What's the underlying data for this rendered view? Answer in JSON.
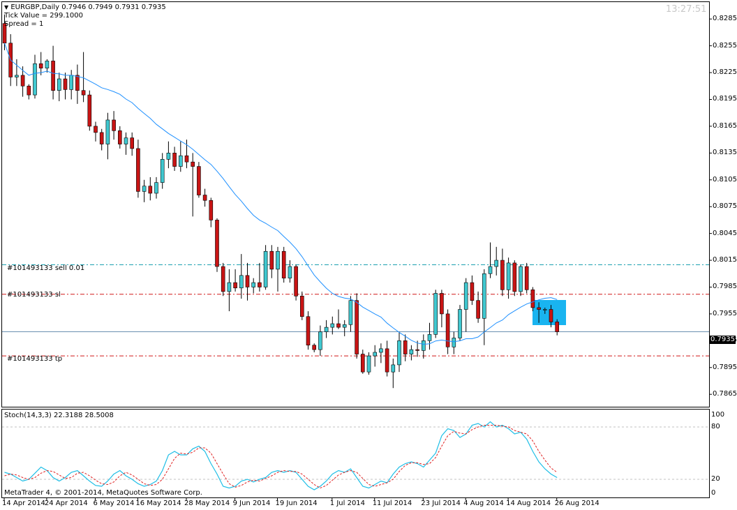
{
  "header": {
    "symbol_line": "EURGBP,Daily  0.7946 0.7949 0.7931 0.7935",
    "tick_value": "Tick Value = 299.1000",
    "spread": "Spread = 1",
    "clock": "13:27:51"
  },
  "orders": {
    "sell_label": "#101493133 sell 0.01",
    "sl_label": "#101493133 sl",
    "tp_label": "#101493133 tp",
    "sell_price": 0.801,
    "sl_price": 0.7977,
    "tp_price": 0.7908
  },
  "current_price": {
    "label": "0.7935",
    "value": 0.7935
  },
  "price_axis": [
    "0.8285",
    "0.8255",
    "0.8225",
    "0.8195",
    "0.8165",
    "0.8135",
    "0.8105",
    "0.8075",
    "0.8045",
    "0.8015",
    "0.7985",
    "0.7955",
    "0.7925",
    "0.7895",
    "0.7865"
  ],
  "date_axis": [
    "14 Apr 2014",
    "24 Apr 2014",
    "6 May 2014",
    "16 May 2014",
    "28 May 2014",
    "9 Jun 2014",
    "19 Jun 2014",
    "1 Jul 2014",
    "11 Jul 2014",
    "23 Jul 2014",
    "4 Aug 2014",
    "14 Aug 2014",
    "26 Aug 2014"
  ],
  "stoch": {
    "title": "Stoch(14,3,3) 22.3188 28.5008",
    "levels": [
      "100",
      "80",
      "20",
      "0"
    ]
  },
  "footer": "MetaTrader 4, © 2001-2014, MetaQuotes Software Corp.",
  "colors": {
    "bull": "#40c8d0",
    "bear": "#c81414",
    "ma": "#1e90ff",
    "stoch_main": "#1ebee6",
    "stoch_signal": "#e02020",
    "highlight": "#19b4f0"
  },
  "chart_data": {
    "type": "candlestick",
    "timeframe": "Daily",
    "symbol": "EURGBP",
    "ylim": [
      0.7855,
      0.83
    ],
    "candles": [
      {
        "o": 0.828,
        "h": 0.829,
        "l": 0.825,
        "c": 0.8258
      },
      {
        "o": 0.8258,
        "h": 0.8268,
        "l": 0.821,
        "c": 0.822
      },
      {
        "o": 0.822,
        "h": 0.824,
        "l": 0.821,
        "c": 0.8222
      },
      {
        "o": 0.8222,
        "h": 0.8232,
        "l": 0.8198,
        "c": 0.821
      },
      {
        "o": 0.821,
        "h": 0.8212,
        "l": 0.8195,
        "c": 0.82
      },
      {
        "o": 0.82,
        "h": 0.8245,
        "l": 0.8196,
        "c": 0.8235
      },
      {
        "o": 0.8235,
        "h": 0.8248,
        "l": 0.8222,
        "c": 0.823
      },
      {
        "o": 0.823,
        "h": 0.824,
        "l": 0.8225,
        "c": 0.8238
      },
      {
        "o": 0.8238,
        "h": 0.8255,
        "l": 0.8195,
        "c": 0.8205
      },
      {
        "o": 0.8205,
        "h": 0.8225,
        "l": 0.8193,
        "c": 0.8218
      },
      {
        "o": 0.8218,
        "h": 0.8225,
        "l": 0.8195,
        "c": 0.8206
      },
      {
        "o": 0.8206,
        "h": 0.8228,
        "l": 0.8195,
        "c": 0.8222
      },
      {
        "o": 0.8222,
        "h": 0.8234,
        "l": 0.819,
        "c": 0.8205
      },
      {
        "o": 0.8205,
        "h": 0.8248,
        "l": 0.8192,
        "c": 0.82
      },
      {
        "o": 0.82,
        "h": 0.8205,
        "l": 0.816,
        "c": 0.8165
      },
      {
        "o": 0.8165,
        "h": 0.817,
        "l": 0.8148,
        "c": 0.8158
      },
      {
        "o": 0.8158,
        "h": 0.8162,
        "l": 0.8138,
        "c": 0.8145
      },
      {
        "o": 0.8145,
        "h": 0.818,
        "l": 0.8128,
        "c": 0.8172
      },
      {
        "o": 0.8172,
        "h": 0.8182,
        "l": 0.815,
        "c": 0.816
      },
      {
        "o": 0.816,
        "h": 0.8165,
        "l": 0.814,
        "c": 0.8145
      },
      {
        "o": 0.8145,
        "h": 0.8158,
        "l": 0.8133,
        "c": 0.8152
      },
      {
        "o": 0.8152,
        "h": 0.8158,
        "l": 0.8132,
        "c": 0.814
      },
      {
        "o": 0.814,
        "h": 0.815,
        "l": 0.8085,
        "c": 0.8092
      },
      {
        "o": 0.8092,
        "h": 0.8105,
        "l": 0.808,
        "c": 0.8098
      },
      {
        "o": 0.8098,
        "h": 0.8108,
        "l": 0.8082,
        "c": 0.809
      },
      {
        "o": 0.809,
        "h": 0.8108,
        "l": 0.8084,
        "c": 0.8102
      },
      {
        "o": 0.8102,
        "h": 0.8135,
        "l": 0.8095,
        "c": 0.8128
      },
      {
        "o": 0.8128,
        "h": 0.8148,
        "l": 0.8118,
        "c": 0.8135
      },
      {
        "o": 0.8135,
        "h": 0.8142,
        "l": 0.8115,
        "c": 0.812
      },
      {
        "o": 0.812,
        "h": 0.8148,
        "l": 0.8114,
        "c": 0.8132
      },
      {
        "o": 0.8132,
        "h": 0.815,
        "l": 0.8118,
        "c": 0.8125
      },
      {
        "o": 0.8125,
        "h": 0.8135,
        "l": 0.8064,
        "c": 0.812
      },
      {
        "o": 0.812,
        "h": 0.8125,
        "l": 0.8085,
        "c": 0.8088
      },
      {
        "o": 0.8088,
        "h": 0.8095,
        "l": 0.8075,
        "c": 0.8082
      },
      {
        "o": 0.8082,
        "h": 0.8085,
        "l": 0.8052,
        "c": 0.806
      },
      {
        "o": 0.806,
        "h": 0.8062,
        "l": 0.8002,
        "c": 0.8008
      },
      {
        "o": 0.8008,
        "h": 0.8012,
        "l": 0.7975,
        "c": 0.798
      },
      {
        "o": 0.798,
        "h": 0.8005,
        "l": 0.7958,
        "c": 0.799
      },
      {
        "o": 0.799,
        "h": 0.8005,
        "l": 0.798,
        "c": 0.7984
      },
      {
        "o": 0.7984,
        "h": 0.8022,
        "l": 0.7972,
        "c": 0.7998
      },
      {
        "o": 0.7998,
        "h": 0.8012,
        "l": 0.797,
        "c": 0.7985
      },
      {
        "o": 0.7985,
        "h": 0.7995,
        "l": 0.7978,
        "c": 0.799
      },
      {
        "o": 0.799,
        "h": 0.8012,
        "l": 0.798,
        "c": 0.7985
      },
      {
        "o": 0.7985,
        "h": 0.8032,
        "l": 0.7982,
        "c": 0.8025
      },
      {
        "o": 0.8025,
        "h": 0.8032,
        "l": 0.7995,
        "c": 0.8005
      },
      {
        "o": 0.8005,
        "h": 0.803,
        "l": 0.798,
        "c": 0.8025
      },
      {
        "o": 0.8025,
        "h": 0.803,
        "l": 0.799,
        "c": 0.7995
      },
      {
        "o": 0.7995,
        "h": 0.8015,
        "l": 0.799,
        "c": 0.8008
      },
      {
        "o": 0.8008,
        "h": 0.801,
        "l": 0.797,
        "c": 0.7975
      },
      {
        "o": 0.7975,
        "h": 0.798,
        "l": 0.7948,
        "c": 0.7952
      },
      {
        "o": 0.7952,
        "h": 0.7958,
        "l": 0.7915,
        "c": 0.792
      },
      {
        "o": 0.792,
        "h": 0.7922,
        "l": 0.7912,
        "c": 0.7915
      },
      {
        "o": 0.7915,
        "h": 0.7942,
        "l": 0.7908,
        "c": 0.7935
      },
      {
        "o": 0.7935,
        "h": 0.7948,
        "l": 0.7928,
        "c": 0.794
      },
      {
        "o": 0.794,
        "h": 0.7952,
        "l": 0.7932,
        "c": 0.7944
      },
      {
        "o": 0.7944,
        "h": 0.796,
        "l": 0.7938,
        "c": 0.794
      },
      {
        "o": 0.794,
        "h": 0.7948,
        "l": 0.793,
        "c": 0.7943
      },
      {
        "o": 0.7943,
        "h": 0.7975,
        "l": 0.7935,
        "c": 0.797
      },
      {
        "o": 0.797,
        "h": 0.7978,
        "l": 0.7905,
        "c": 0.791
      },
      {
        "o": 0.791,
        "h": 0.7915,
        "l": 0.7888,
        "c": 0.789
      },
      {
        "o": 0.789,
        "h": 0.7912,
        "l": 0.7887,
        "c": 0.7908
      },
      {
        "o": 0.7908,
        "h": 0.792,
        "l": 0.7896,
        "c": 0.7912
      },
      {
        "o": 0.7912,
        "h": 0.7922,
        "l": 0.79,
        "c": 0.7916
      },
      {
        "o": 0.7916,
        "h": 0.7925,
        "l": 0.7885,
        "c": 0.789
      },
      {
        "o": 0.789,
        "h": 0.7905,
        "l": 0.7872,
        "c": 0.7898
      },
      {
        "o": 0.7898,
        "h": 0.7935,
        "l": 0.789,
        "c": 0.7925
      },
      {
        "o": 0.7925,
        "h": 0.7932,
        "l": 0.7902,
        "c": 0.791
      },
      {
        "o": 0.791,
        "h": 0.792,
        "l": 0.7903,
        "c": 0.7915
      },
      {
        "o": 0.7915,
        "h": 0.7925,
        "l": 0.7907,
        "c": 0.7914
      },
      {
        "o": 0.7914,
        "h": 0.7932,
        "l": 0.7905,
        "c": 0.7925
      },
      {
        "o": 0.7925,
        "h": 0.7945,
        "l": 0.7915,
        "c": 0.7932
      },
      {
        "o": 0.7932,
        "h": 0.7982,
        "l": 0.7928,
        "c": 0.7978
      },
      {
        "o": 0.7978,
        "h": 0.7982,
        "l": 0.794,
        "c": 0.7955
      },
      {
        "o": 0.7955,
        "h": 0.796,
        "l": 0.791,
        "c": 0.7918
      },
      {
        "o": 0.7918,
        "h": 0.7935,
        "l": 0.791,
        "c": 0.7928
      },
      {
        "o": 0.7928,
        "h": 0.7965,
        "l": 0.7925,
        "c": 0.796
      },
      {
        "o": 0.796,
        "h": 0.7995,
        "l": 0.7935,
        "c": 0.799
      },
      {
        "o": 0.799,
        "h": 0.7998,
        "l": 0.7965,
        "c": 0.797
      },
      {
        "o": 0.797,
        "h": 0.798,
        "l": 0.7945,
        "c": 0.795
      },
      {
        "o": 0.795,
        "h": 0.8005,
        "l": 0.792,
        "c": 0.8
      },
      {
        "o": 0.8,
        "h": 0.8035,
        "l": 0.7995,
        "c": 0.8008
      },
      {
        "o": 0.8008,
        "h": 0.803,
        "l": 0.7998,
        "c": 0.8015
      },
      {
        "o": 0.8015,
        "h": 0.8028,
        "l": 0.7975,
        "c": 0.7982
      },
      {
        "o": 0.7982,
        "h": 0.8018,
        "l": 0.7972,
        "c": 0.8012
      },
      {
        "o": 0.8012,
        "h": 0.8015,
        "l": 0.7975,
        "c": 0.798
      },
      {
        "o": 0.798,
        "h": 0.801,
        "l": 0.7975,
        "c": 0.8008
      },
      {
        "o": 0.8008,
        "h": 0.8012,
        "l": 0.7978,
        "c": 0.7982
      },
      {
        "o": 0.7982,
        "h": 0.7985,
        "l": 0.7958,
        "c": 0.7962
      },
      {
        "o": 0.7962,
        "h": 0.7968,
        "l": 0.7945,
        "c": 0.796
      },
      {
        "o": 0.796,
        "h": 0.7962,
        "l": 0.7955,
        "c": 0.796
      },
      {
        "o": 0.796,
        "h": 0.7965,
        "l": 0.794,
        "c": 0.7946
      },
      {
        "o": 0.7946,
        "h": 0.7949,
        "l": 0.7931,
        "c": 0.7935
      }
    ],
    "ma_period": 20,
    "stoch_main": [
      28,
      26,
      22,
      18,
      20,
      27,
      34,
      30,
      22,
      18,
      22,
      28,
      30,
      24,
      18,
      13,
      12,
      18,
      26,
      30,
      24,
      20,
      15,
      12,
      14,
      18,
      30,
      48,
      52,
      48,
      48,
      55,
      58,
      52,
      38,
      26,
      12,
      10,
      12,
      18,
      20,
      17,
      20,
      22,
      28,
      30,
      28,
      30,
      28,
      20,
      12,
      8,
      12,
      18,
      26,
      30,
      28,
      32,
      22,
      12,
      10,
      14,
      18,
      16,
      26,
      34,
      38,
      40,
      38,
      34,
      42,
      50,
      70,
      78,
      76,
      68,
      72,
      82,
      84,
      80,
      86,
      80,
      82,
      78,
      72,
      74,
      66,
      52,
      40,
      32,
      26,
      22
    ],
    "stoch_signal": [
      24,
      26,
      25,
      22,
      20,
      22,
      27,
      30,
      29,
      25,
      21,
      22,
      27,
      28,
      24,
      19,
      15,
      14,
      17,
      24,
      28,
      25,
      20,
      15,
      13,
      14,
      20,
      32,
      44,
      50,
      49,
      51,
      56,
      56,
      50,
      38,
      26,
      15,
      11,
      13,
      17,
      19,
      18,
      21,
      24,
      28,
      30,
      29,
      29,
      26,
      20,
      14,
      10,
      13,
      19,
      25,
      28,
      30,
      28,
      21,
      14,
      12,
      14,
      16,
      20,
      29,
      36,
      39,
      39,
      37,
      38,
      45,
      58,
      70,
      75,
      73,
      72,
      77,
      80,
      82,
      82,
      82,
      81,
      80,
      76,
      74,
      72,
      64,
      52,
      42,
      33,
      28
    ]
  }
}
